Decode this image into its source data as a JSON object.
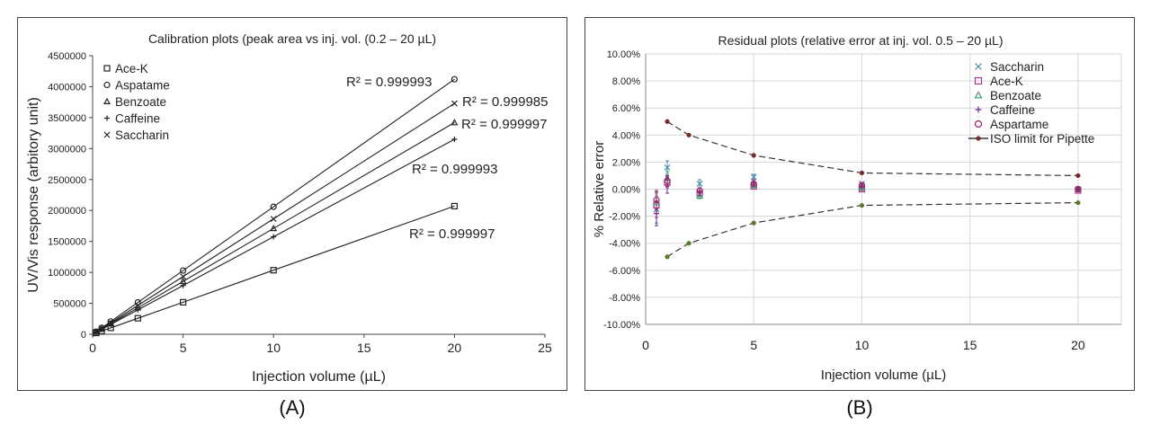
{
  "captions": {
    "a": "(A)",
    "b": "(B)"
  },
  "chart_data": [
    {
      "type": "scatter",
      "title": "Calibration plots (peak area vs inj. vol. (0.2 – 20 µL)",
      "xlabel": "Injection volume (µL)",
      "ylabel": "UV/Vis response (arbitory unit)",
      "xlim": [
        0,
        25
      ],
      "ylim": [
        0,
        4500000
      ],
      "xticks": [
        0,
        5,
        10,
        15,
        20,
        25
      ],
      "yticks": [
        0,
        500000,
        1000000,
        1500000,
        2000000,
        2500000,
        3000000,
        3500000,
        4000000,
        4500000
      ],
      "grid": false,
      "legend_position": "top-left",
      "x": [
        0.2,
        0.5,
        1,
        2.5,
        5,
        10,
        20
      ],
      "series": [
        {
          "name": "Ace-K",
          "marker": "square",
          "values": [
            20700,
            51800,
            103500,
            258800,
            517500,
            1035000,
            2070000
          ]
        },
        {
          "name": "Aspatame",
          "marker": "circle",
          "values": [
            41200,
            103000,
            206000,
            515000,
            1030000,
            2060000,
            4120000
          ]
        },
        {
          "name": "Benzoate",
          "marker": "triangle",
          "values": [
            34200,
            85500,
            171000,
            427500,
            855000,
            1710000,
            3420000
          ]
        },
        {
          "name": "Caffeine",
          "marker": "plus",
          "values": [
            31500,
            78800,
            157500,
            393800,
            787500,
            1575000,
            3150000
          ]
        },
        {
          "name": "Saccharin",
          "marker": "x",
          "values": [
            37300,
            93300,
            186500,
            466300,
            932500,
            1865000,
            3730000
          ]
        }
      ],
      "annotations": [
        {
          "text": "R² = 0.999993",
          "series": "Aspatame"
        },
        {
          "text": "R² = 0.999985",
          "series": "Saccharin"
        },
        {
          "text": "R² = 0.999997",
          "series": "Benzoate"
        },
        {
          "text": "R² = 0.999993",
          "series": "Caffeine"
        },
        {
          "text": "R² = 0.999997",
          "series": "Ace-K"
        }
      ]
    },
    {
      "type": "scatter",
      "title": "Residual plots (relative error at inj. vol. 0.5 – 20 µL)",
      "xlabel": "Injection volume (µL)",
      "ylabel": "% Relative error",
      "xlim": [
        0,
        22
      ],
      "ylim": [
        -10,
        10
      ],
      "xticks": [
        0,
        5,
        10,
        15,
        20
      ],
      "yticks": [
        "10.00%",
        "8.00%",
        "6.00%",
        "4.00%",
        "2.00%",
        "0.00%",
        "-2.00%",
        "-4.00%",
        "-6.00%",
        "-8.00%",
        "-10.00%"
      ],
      "ytick_values": [
        10,
        8,
        6,
        4,
        2,
        0,
        -2,
        -4,
        -6,
        -8,
        -10
      ],
      "grid": true,
      "legend_position": "top-right",
      "x": [
        0.5,
        1,
        2.5,
        5,
        10,
        20
      ],
      "series": [
        {
          "name": "Saccharin",
          "marker": "x",
          "color": "#4a8fa8",
          "values": [
            -1.5,
            1.6,
            0.4,
            0.9,
            0.4,
            0.0
          ],
          "error": [
            1.0,
            0.5,
            0.3,
            0.2,
            0.1,
            0.1
          ]
        },
        {
          "name": "Ace-K",
          "marker": "square",
          "color": "#b03a8a",
          "values": [
            -1.2,
            0.5,
            -0.3,
            0.2,
            0.0,
            -0.1
          ],
          "error": [
            0.9,
            0.4,
            0.2,
            0.1,
            0.1,
            0.1
          ]
        },
        {
          "name": "Benzoate",
          "marker": "triangle",
          "color": "#3a9a6a",
          "values": [
            -1.0,
            0.8,
            -0.5,
            0.3,
            0.1,
            0.0
          ],
          "error": [
            0.8,
            0.5,
            0.2,
            0.2,
            0.1,
            0.1
          ]
        },
        {
          "name": "Caffeine",
          "marker": "plus",
          "color": "#6a2a8a",
          "values": [
            -1.8,
            0.3,
            -0.2,
            0.5,
            0.2,
            0.0
          ],
          "error": [
            0.9,
            0.6,
            0.3,
            0.2,
            0.1,
            0.1
          ]
        },
        {
          "name": "Aspartame",
          "marker": "circle",
          "color": "#a0206a",
          "values": [
            -0.8,
            0.6,
            -0.1,
            0.4,
            0.3,
            0.0
          ],
          "error": [
            0.7,
            0.4,
            0.2,
            0.1,
            0.1,
            0.1
          ]
        }
      ],
      "limit": {
        "name": "ISO limit for Pipette",
        "x": [
          1,
          2,
          5,
          10,
          20
        ],
        "upper": [
          5,
          4,
          2.5,
          1.2,
          1
        ],
        "lower": [
          -5,
          -4,
          -2.5,
          -1.2,
          -1
        ]
      }
    }
  ]
}
